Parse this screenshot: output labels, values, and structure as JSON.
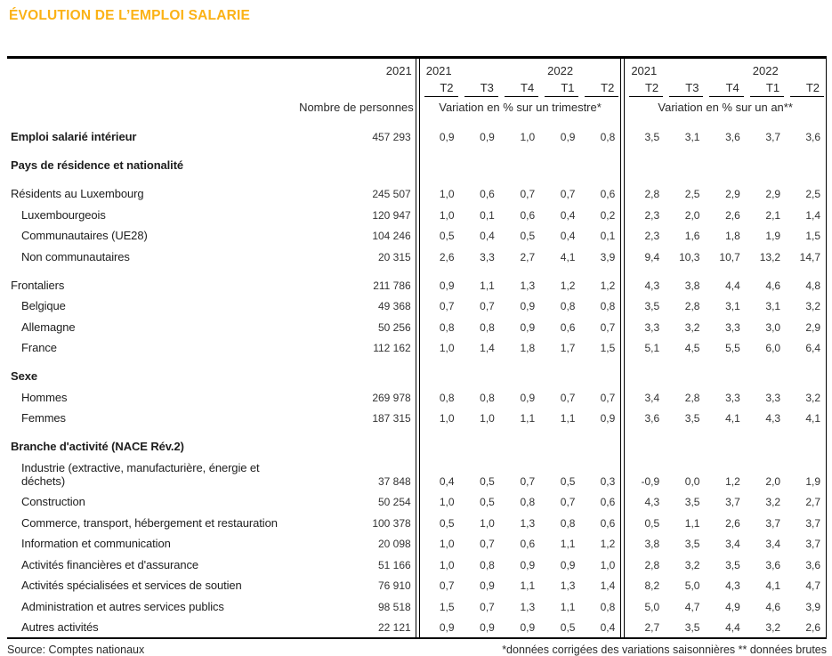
{
  "title": "ÉVOLUTION DE L’EMPLOI SALARIE",
  "colors": {
    "title_accent": "#FBB216",
    "border": "#000000"
  },
  "table": {
    "header": {
      "count_year": "2021",
      "count_label": "Nombre de personnes",
      "group1": {
        "year_left": "2021",
        "year_right": "2022",
        "quarters": [
          "T2",
          "T3",
          "T4",
          "T1",
          "T2"
        ],
        "measure": "Variation en % sur un trimestre*"
      },
      "group2": {
        "year_left": "2021",
        "year_right": "2022",
        "quarters": [
          "T2",
          "T3",
          "T4",
          "T1",
          "T2"
        ],
        "measure": "Variation en % sur un an**"
      }
    },
    "rows": [
      {
        "type": "bold",
        "indent": 0,
        "first": true,
        "label": "Emploi salarié intérieur",
        "n": "457 293",
        "q": [
          "0,9",
          "0,9",
          "1,0",
          "0,9",
          "0,8"
        ],
        "y": [
          "3,5",
          "3,1",
          "3,6",
          "3,7",
          "3,6"
        ]
      },
      {
        "type": "section",
        "indent": 0,
        "gap": true,
        "label": "Pays de résidence et nationalité"
      },
      {
        "type": "data",
        "indent": 0,
        "gap": true,
        "label": "Résidents au Luxembourg",
        "n": "245 507",
        "q": [
          "1,0",
          "0,6",
          "0,7",
          "0,7",
          "0,6"
        ],
        "y": [
          "2,8",
          "2,5",
          "2,9",
          "2,9",
          "2,5"
        ]
      },
      {
        "type": "data",
        "indent": 1,
        "label": "Luxembourgeois",
        "n": "120 947",
        "q": [
          "1,0",
          "0,1",
          "0,6",
          "0,4",
          "0,2"
        ],
        "y": [
          "2,3",
          "2,0",
          "2,6",
          "2,1",
          "1,4"
        ]
      },
      {
        "type": "data",
        "indent": 1,
        "label": "Communautaires (UE28)",
        "n": "104 246",
        "q": [
          "0,5",
          "0,4",
          "0,5",
          "0,4",
          "0,1"
        ],
        "y": [
          "2,3",
          "1,6",
          "1,8",
          "1,9",
          "1,5"
        ]
      },
      {
        "type": "data",
        "indent": 1,
        "label": "Non communautaires",
        "n": "20 315",
        "q": [
          "2,6",
          "3,3",
          "2,7",
          "4,1",
          "3,9"
        ],
        "y": [
          "9,4",
          "10,3",
          "10,7",
          "13,2",
          "14,7"
        ]
      },
      {
        "type": "data",
        "indent": 0,
        "gap": true,
        "label": "Frontaliers",
        "n": "211 786",
        "q": [
          "0,9",
          "1,1",
          "1,3",
          "1,2",
          "1,2"
        ],
        "y": [
          "4,3",
          "3,8",
          "4,4",
          "4,6",
          "4,8"
        ]
      },
      {
        "type": "data",
        "indent": 1,
        "label": "Belgique",
        "n": "49 368",
        "q": [
          "0,7",
          "0,7",
          "0,9",
          "0,8",
          "0,8"
        ],
        "y": [
          "3,5",
          "2,8",
          "3,1",
          "3,1",
          "3,2"
        ]
      },
      {
        "type": "data",
        "indent": 1,
        "label": "Allemagne",
        "n": "50 256",
        "q": [
          "0,8",
          "0,8",
          "0,9",
          "0,6",
          "0,7"
        ],
        "y": [
          "3,3",
          "3,2",
          "3,3",
          "3,0",
          "2,9"
        ]
      },
      {
        "type": "data",
        "indent": 1,
        "label": "France",
        "n": "112 162",
        "q": [
          "1,0",
          "1,4",
          "1,8",
          "1,7",
          "1,5"
        ],
        "y": [
          "5,1",
          "4,5",
          "5,5",
          "6,0",
          "6,4"
        ]
      },
      {
        "type": "section",
        "indent": 0,
        "gap": true,
        "label": "Sexe"
      },
      {
        "type": "data",
        "indent": 1,
        "label": "Hommes",
        "n": "269 978",
        "q": [
          "0,8",
          "0,8",
          "0,9",
          "0,7",
          "0,7"
        ],
        "y": [
          "3,4",
          "2,8",
          "3,3",
          "3,3",
          "3,2"
        ]
      },
      {
        "type": "data",
        "indent": 1,
        "label": "Femmes",
        "n": "187 315",
        "q": [
          "1,0",
          "1,0",
          "1,1",
          "1,1",
          "0,9"
        ],
        "y": [
          "3,6",
          "3,5",
          "4,1",
          "4,3",
          "4,1"
        ]
      },
      {
        "type": "section",
        "indent": 0,
        "gap": true,
        "label": "Branche d'activité (NACE Rév.2)"
      },
      {
        "type": "data",
        "indent": 1,
        "label": "Industrie (extractive, manufacturière, énergie et\ndéchets)",
        "n": "37 848",
        "q": [
          "0,4",
          "0,5",
          "0,7",
          "0,5",
          "0,3"
        ],
        "y": [
          "-0,9",
          "0,0",
          "1,2",
          "2,0",
          "1,9"
        ]
      },
      {
        "type": "data",
        "indent": 1,
        "label": "Construction",
        "n": "50 254",
        "q": [
          "1,0",
          "0,5",
          "0,8",
          "0,7",
          "0,6"
        ],
        "y": [
          "4,3",
          "3,5",
          "3,7",
          "3,2",
          "2,7"
        ]
      },
      {
        "type": "data",
        "indent": 1,
        "label": "Commerce, transport, hébergement et restauration",
        "n": "100 378",
        "q": [
          "0,5",
          "1,0",
          "1,3",
          "0,8",
          "0,6"
        ],
        "y": [
          "0,5",
          "1,1",
          "2,6",
          "3,7",
          "3,7"
        ]
      },
      {
        "type": "data",
        "indent": 1,
        "label": "Information et communication",
        "n": "20 098",
        "q": [
          "1,0",
          "0,7",
          "0,6",
          "1,1",
          "1,2"
        ],
        "y": [
          "3,8",
          "3,5",
          "3,4",
          "3,4",
          "3,7"
        ]
      },
      {
        "type": "data",
        "indent": 1,
        "label": "Activités financières et d'assurance",
        "n": "51 166",
        "q": [
          "1,0",
          "0,8",
          "0,9",
          "0,9",
          "1,0"
        ],
        "y": [
          "2,8",
          "3,2",
          "3,5",
          "3,6",
          "3,6"
        ]
      },
      {
        "type": "data",
        "indent": 1,
        "label": "Activités spécialisées et services de soutien",
        "n": "76 910",
        "q": [
          "0,7",
          "0,9",
          "1,1",
          "1,3",
          "1,4"
        ],
        "y": [
          "8,2",
          "5,0",
          "4,3",
          "4,1",
          "4,7"
        ]
      },
      {
        "type": "data",
        "indent": 1,
        "label": "Administration et autres services publics",
        "n": "98 518",
        "q": [
          "1,5",
          "0,7",
          "1,3",
          "1,1",
          "0,8"
        ],
        "y": [
          "5,0",
          "4,7",
          "4,9",
          "4,6",
          "3,9"
        ]
      },
      {
        "type": "data",
        "indent": 1,
        "label": "Autres activités",
        "n": "22 121",
        "q": [
          "0,9",
          "0,9",
          "0,9",
          "0,5",
          "0,4"
        ],
        "y": [
          "2,7",
          "3,5",
          "4,4",
          "3,2",
          "2,6"
        ]
      }
    ]
  },
  "footer": {
    "source": "Source: Comptes nationaux",
    "note": "*données corrigées des variations saisonnières ** données brutes"
  }
}
